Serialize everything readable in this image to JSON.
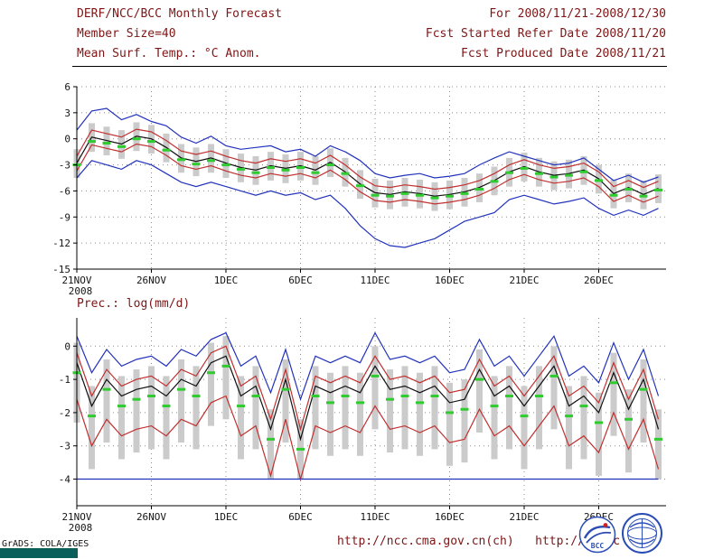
{
  "header": {
    "title": "DERF/NCC/BCC Monthly Forecast",
    "member_size": "Member Size=40",
    "for_range": "For 2008/11/21-2008/12/30",
    "refer_date": "Fcst Started Refer Date 2008/11/20",
    "produced_date": "Fcst Produced Date 2008/11/21"
  },
  "footer": {
    "urls": "http://ncc.cma.gov.cn(ch)   http://bcc.c",
    "grads_credit": "GrADS: COLA/IGES",
    "bcc_label": "BCC"
  },
  "colors": {
    "header_text": "#7d1616",
    "envelope_line": "#2233bb",
    "std_line": "#c03030",
    "mean_line": "#101010",
    "median_mark": "#2ecc2e",
    "spread_bar": "#cbcbcb",
    "teal_bar": "#0b5f5a"
  },
  "chart_data": [
    {
      "type": "line",
      "title": "Mean Surf. Temp.: °C Anom.",
      "x_tick_labels": [
        "21NOV",
        "26NOV",
        "1DEC",
        "6DEC",
        "11DEC",
        "16DEC",
        "21DEC",
        "26DEC"
      ],
      "x_tick_days": [
        0,
        5,
        10,
        15,
        20,
        25,
        30,
        35
      ],
      "x_sub_label": "2008",
      "n_days": 40,
      "ylim": [
        -15,
        6
      ],
      "y_ticks": [
        6,
        3,
        0,
        -3,
        -6,
        -9,
        -12,
        -15
      ],
      "grid": true,
      "bars": {
        "color": "#cbcbcb",
        "high": [
          -1.2,
          1.8,
          1.4,
          1.0,
          1.9,
          1.6,
          0.6,
          -0.6,
          -1.0,
          -0.6,
          -1.2,
          -1.7,
          -2.0,
          -1.5,
          -1.8,
          -1.5,
          -2.0,
          -1.1,
          -2.2,
          -3.6,
          -4.6,
          -4.8,
          -4.5,
          -4.7,
          -5.0,
          -4.8,
          -4.5,
          -4.0,
          -3.2,
          -2.2,
          -1.6,
          -2.2,
          -2.6,
          -2.4,
          -2.0,
          -3.0,
          -4.7,
          -4.0,
          -4.8,
          -4.1
        ],
        "low": [
          -4.5,
          -1.5,
          -1.9,
          -2.3,
          -1.4,
          -1.7,
          -2.7,
          -3.9,
          -4.3,
          -3.9,
          -4.5,
          -5.0,
          -5.3,
          -4.8,
          -5.1,
          -4.8,
          -5.3,
          -4.4,
          -5.5,
          -6.9,
          -7.9,
          -8.1,
          -7.8,
          -8.0,
          -8.3,
          -8.1,
          -7.8,
          -7.3,
          -6.5,
          -5.5,
          -4.9,
          -5.5,
          -5.9,
          -5.7,
          -5.3,
          -6.3,
          -8.0,
          -7.3,
          -8.1,
          -7.4
        ]
      },
      "series": [
        {
          "name": "ensemble-max",
          "color": "#2233bb",
          "values": [
            1.0,
            3.2,
            3.5,
            2.2,
            2.8,
            2.0,
            1.5,
            0.2,
            -0.5,
            0.3,
            -0.8,
            -1.2,
            -1.0,
            -0.8,
            -1.5,
            -1.2,
            -2.0,
            -0.8,
            -1.5,
            -2.5,
            -4.0,
            -4.5,
            -4.2,
            -4.0,
            -4.5,
            -4.3,
            -4.0,
            -3.0,
            -2.2,
            -1.5,
            -2.0,
            -2.5,
            -3.0,
            -2.8,
            -2.2,
            -3.5,
            -4.8,
            -4.2,
            -5.0,
            -4.4
          ]
        },
        {
          "name": "plus-one-std",
          "color": "#c03030",
          "values": [
            -2.0,
            1.0,
            0.6,
            0.2,
            1.1,
            0.8,
            -0.2,
            -1.4,
            -1.8,
            -1.4,
            -2.0,
            -2.5,
            -2.8,
            -2.3,
            -2.6,
            -2.3,
            -2.8,
            -1.9,
            -3.0,
            -4.4,
            -5.4,
            -5.6,
            -5.3,
            -5.5,
            -5.8,
            -5.6,
            -5.3,
            -4.8,
            -4.0,
            -3.0,
            -2.4,
            -3.0,
            -3.4,
            -3.2,
            -2.8,
            -3.8,
            -5.5,
            -4.8,
            -5.6,
            -4.9
          ]
        },
        {
          "name": "ensemble-mean",
          "color": "#101010",
          "values": [
            -2.8,
            0.2,
            -0.2,
            -0.6,
            0.3,
            0.0,
            -1.0,
            -2.2,
            -2.6,
            -2.2,
            -2.8,
            -3.3,
            -3.6,
            -3.1,
            -3.4,
            -3.1,
            -3.6,
            -2.7,
            -3.8,
            -5.2,
            -6.2,
            -6.4,
            -6.1,
            -6.3,
            -6.6,
            -6.4,
            -6.1,
            -5.6,
            -4.8,
            -3.8,
            -3.2,
            -3.8,
            -4.2,
            -4.0,
            -3.6,
            -4.6,
            -6.3,
            -5.6,
            -6.4,
            -5.7
          ]
        },
        {
          "name": "minus-one-std",
          "color": "#c03030",
          "values": [
            -3.7,
            -0.7,
            -1.1,
            -1.5,
            -0.6,
            -0.9,
            -1.9,
            -3.1,
            -3.5,
            -3.1,
            -3.7,
            -4.2,
            -4.5,
            -4.0,
            -4.3,
            -4.0,
            -4.5,
            -3.6,
            -4.7,
            -6.1,
            -7.1,
            -7.3,
            -7.0,
            -7.2,
            -7.5,
            -7.3,
            -7.0,
            -6.5,
            -5.7,
            -4.7,
            -4.1,
            -4.7,
            -5.1,
            -4.9,
            -4.5,
            -5.5,
            -7.2,
            -6.5,
            -7.3,
            -6.6
          ]
        },
        {
          "name": "ensemble-min",
          "color": "#2233bb",
          "values": [
            -4.5,
            -2.5,
            -3.0,
            -3.5,
            -2.5,
            -3.0,
            -4.0,
            -5.0,
            -5.5,
            -5.0,
            -5.5,
            -6.0,
            -6.5,
            -6.0,
            -6.5,
            -6.2,
            -7.0,
            -6.5,
            -8.0,
            -10.0,
            -11.5,
            -12.3,
            -12.5,
            -12.0,
            -11.5,
            -10.5,
            -9.5,
            -9.0,
            -8.5,
            -7.0,
            -6.5,
            -7.0,
            -7.5,
            -7.2,
            -6.8,
            -8.0,
            -8.8,
            -8.2,
            -8.8,
            -8.0
          ]
        }
      ],
      "median_marks": {
        "color": "#2ecc2e",
        "values": [
          -3.0,
          -0.3,
          -0.5,
          -0.9,
          0.0,
          -0.3,
          -1.3,
          -2.4,
          -2.9,
          -2.5,
          -3.0,
          -3.5,
          -3.9,
          -3.3,
          -3.6,
          -3.3,
          -3.9,
          -3.0,
          -4.0,
          -5.4,
          -6.5,
          -6.6,
          -6.3,
          -6.5,
          -6.8,
          -6.6,
          -6.3,
          -5.8,
          -4.9,
          -3.9,
          -3.4,
          -4.0,
          -4.4,
          -4.2,
          -3.8,
          -4.8,
          -6.5,
          -5.8,
          -6.6,
          -5.9
        ]
      }
    },
    {
      "type": "line",
      "title": "Prec.: log(mm/d)",
      "x_tick_labels": [
        "21NOV",
        "26NOV",
        "1DEC",
        "6DEC",
        "11DEC",
        "16DEC",
        "21DEC",
        "26DEC"
      ],
      "x_tick_days": [
        0,
        5,
        10,
        15,
        20,
        25,
        30,
        35
      ],
      "x_sub_label": "2008",
      "n_days": 40,
      "ylim": [
        -4.8,
        0.85
      ],
      "y_ticks": [
        0,
        -1,
        -2,
        -3,
        -4
      ],
      "grid": true,
      "bars": {
        "color": "#cbcbcb",
        "high": [
          0.1,
          -1.2,
          -0.4,
          -0.9,
          -0.7,
          -0.6,
          -0.9,
          -0.4,
          -0.6,
          0.1,
          0.3,
          -0.9,
          -0.6,
          -1.9,
          -0.4,
          -2.2,
          -0.6,
          -0.8,
          -0.6,
          -0.8,
          0.0,
          -0.7,
          -0.6,
          -0.8,
          -0.6,
          -1.1,
          -1.0,
          -0.1,
          -0.9,
          -0.6,
          -1.2,
          -0.6,
          0.0,
          -1.2,
          -0.9,
          -1.4,
          -0.2,
          -1.3,
          -0.4,
          -1.9
        ],
        "low": [
          -2.3,
          -3.7,
          -2.9,
          -3.4,
          -3.2,
          -3.1,
          -3.4,
          -2.9,
          -3.1,
          -2.4,
          -2.2,
          -3.4,
          -3.1,
          -4.0,
          -2.9,
          -4.0,
          -3.1,
          -3.3,
          -3.1,
          -3.3,
          -2.5,
          -3.2,
          -3.1,
          -3.3,
          -3.1,
          -3.6,
          -3.5,
          -2.6,
          -3.4,
          -3.1,
          -3.7,
          -3.1,
          -2.5,
          -3.7,
          -3.4,
          -3.9,
          -2.7,
          -3.8,
          -2.9,
          -4.0
        ]
      },
      "series": [
        {
          "name": "ensemble-max",
          "color": "#2233bb",
          "values": [
            0.3,
            -0.8,
            -0.1,
            -0.6,
            -0.4,
            -0.3,
            -0.6,
            -0.1,
            -0.3,
            0.2,
            0.4,
            -0.6,
            -0.3,
            -1.4,
            -0.1,
            -1.6,
            -0.3,
            -0.5,
            -0.3,
            -0.5,
            0.4,
            -0.4,
            -0.3,
            -0.5,
            -0.3,
            -0.8,
            -0.7,
            0.2,
            -0.6,
            -0.3,
            -0.9,
            -0.3,
            0.3,
            -0.9,
            -0.6,
            -1.1,
            0.1,
            -1.0,
            -0.1,
            -1.5
          ]
        },
        {
          "name": "plus-one-std",
          "color": "#c03030",
          "values": [
            -0.2,
            -1.5,
            -0.7,
            -1.2,
            -1.0,
            -0.9,
            -1.2,
            -0.7,
            -0.9,
            -0.2,
            0.0,
            -1.2,
            -0.9,
            -2.2,
            -0.7,
            -2.5,
            -0.9,
            -1.1,
            -0.9,
            -1.1,
            -0.3,
            -1.0,
            -0.9,
            -1.1,
            -0.9,
            -1.4,
            -1.3,
            -0.4,
            -1.2,
            -0.9,
            -1.5,
            -0.9,
            -0.3,
            -1.5,
            -1.2,
            -1.7,
            -0.5,
            -1.6,
            -0.7,
            -2.2
          ]
        },
        {
          "name": "ensemble-mean",
          "color": "#101010",
          "values": [
            -0.5,
            -1.8,
            -1.0,
            -1.5,
            -1.3,
            -1.2,
            -1.5,
            -1.0,
            -1.2,
            -0.5,
            -0.3,
            -1.5,
            -1.2,
            -2.5,
            -1.0,
            -2.8,
            -1.2,
            -1.4,
            -1.2,
            -1.4,
            -0.6,
            -1.3,
            -1.2,
            -1.4,
            -1.2,
            -1.7,
            -1.6,
            -0.7,
            -1.5,
            -1.2,
            -1.8,
            -1.2,
            -0.6,
            -1.8,
            -1.5,
            -2.0,
            -0.8,
            -1.9,
            -1.0,
            -2.5
          ]
        },
        {
          "name": "minus-one-std",
          "color": "#c03030",
          "values": [
            -1.6,
            -3.0,
            -2.2,
            -2.7,
            -2.5,
            -2.4,
            -2.7,
            -2.2,
            -2.4,
            -1.7,
            -1.5,
            -2.7,
            -2.4,
            -3.9,
            -2.2,
            -4.0,
            -2.4,
            -2.6,
            -2.4,
            -2.6,
            -1.8,
            -2.5,
            -2.4,
            -2.6,
            -2.4,
            -2.9,
            -2.8,
            -1.9,
            -2.7,
            -2.4,
            -3.0,
            -2.4,
            -1.8,
            -3.0,
            -2.7,
            -3.2,
            -2.0,
            -3.1,
            -2.2,
            -3.7
          ]
        },
        {
          "name": "ensemble-min",
          "color": "#2233bb",
          "values": [
            -4.0,
            -4.0,
            -4.0,
            -4.0,
            -4.0,
            -4.0,
            -4.0,
            -4.0,
            -4.0,
            -4.0,
            -4.0,
            -4.0,
            -4.0,
            -4.0,
            -4.0,
            -4.0,
            -4.0,
            -4.0,
            -4.0,
            -4.0,
            -4.0,
            -4.0,
            -4.0,
            -4.0,
            -4.0,
            -4.0,
            -4.0,
            -4.0,
            -4.0,
            -4.0,
            -4.0,
            -4.0,
            -4.0,
            -4.0,
            -4.0,
            -4.0,
            -4.0,
            -4.0,
            -4.0,
            -4.0
          ]
        }
      ],
      "median_marks": {
        "color": "#2ecc2e",
        "values": [
          -0.8,
          -2.1,
          -1.3,
          -1.8,
          -1.6,
          -1.5,
          -1.8,
          -1.3,
          -1.5,
          -0.8,
          -0.6,
          -1.8,
          -1.5,
          -2.8,
          -1.3,
          -3.1,
          -1.5,
          -1.7,
          -1.5,
          -1.7,
          -0.9,
          -1.6,
          -1.5,
          -1.7,
          -1.5,
          -2.0,
          -1.9,
          -1.0,
          -1.8,
          -1.5,
          -2.1,
          -1.5,
          -0.9,
          -2.1,
          -1.8,
          -2.3,
          -1.1,
          -2.2,
          -1.3,
          -2.8
        ]
      }
    }
  ]
}
